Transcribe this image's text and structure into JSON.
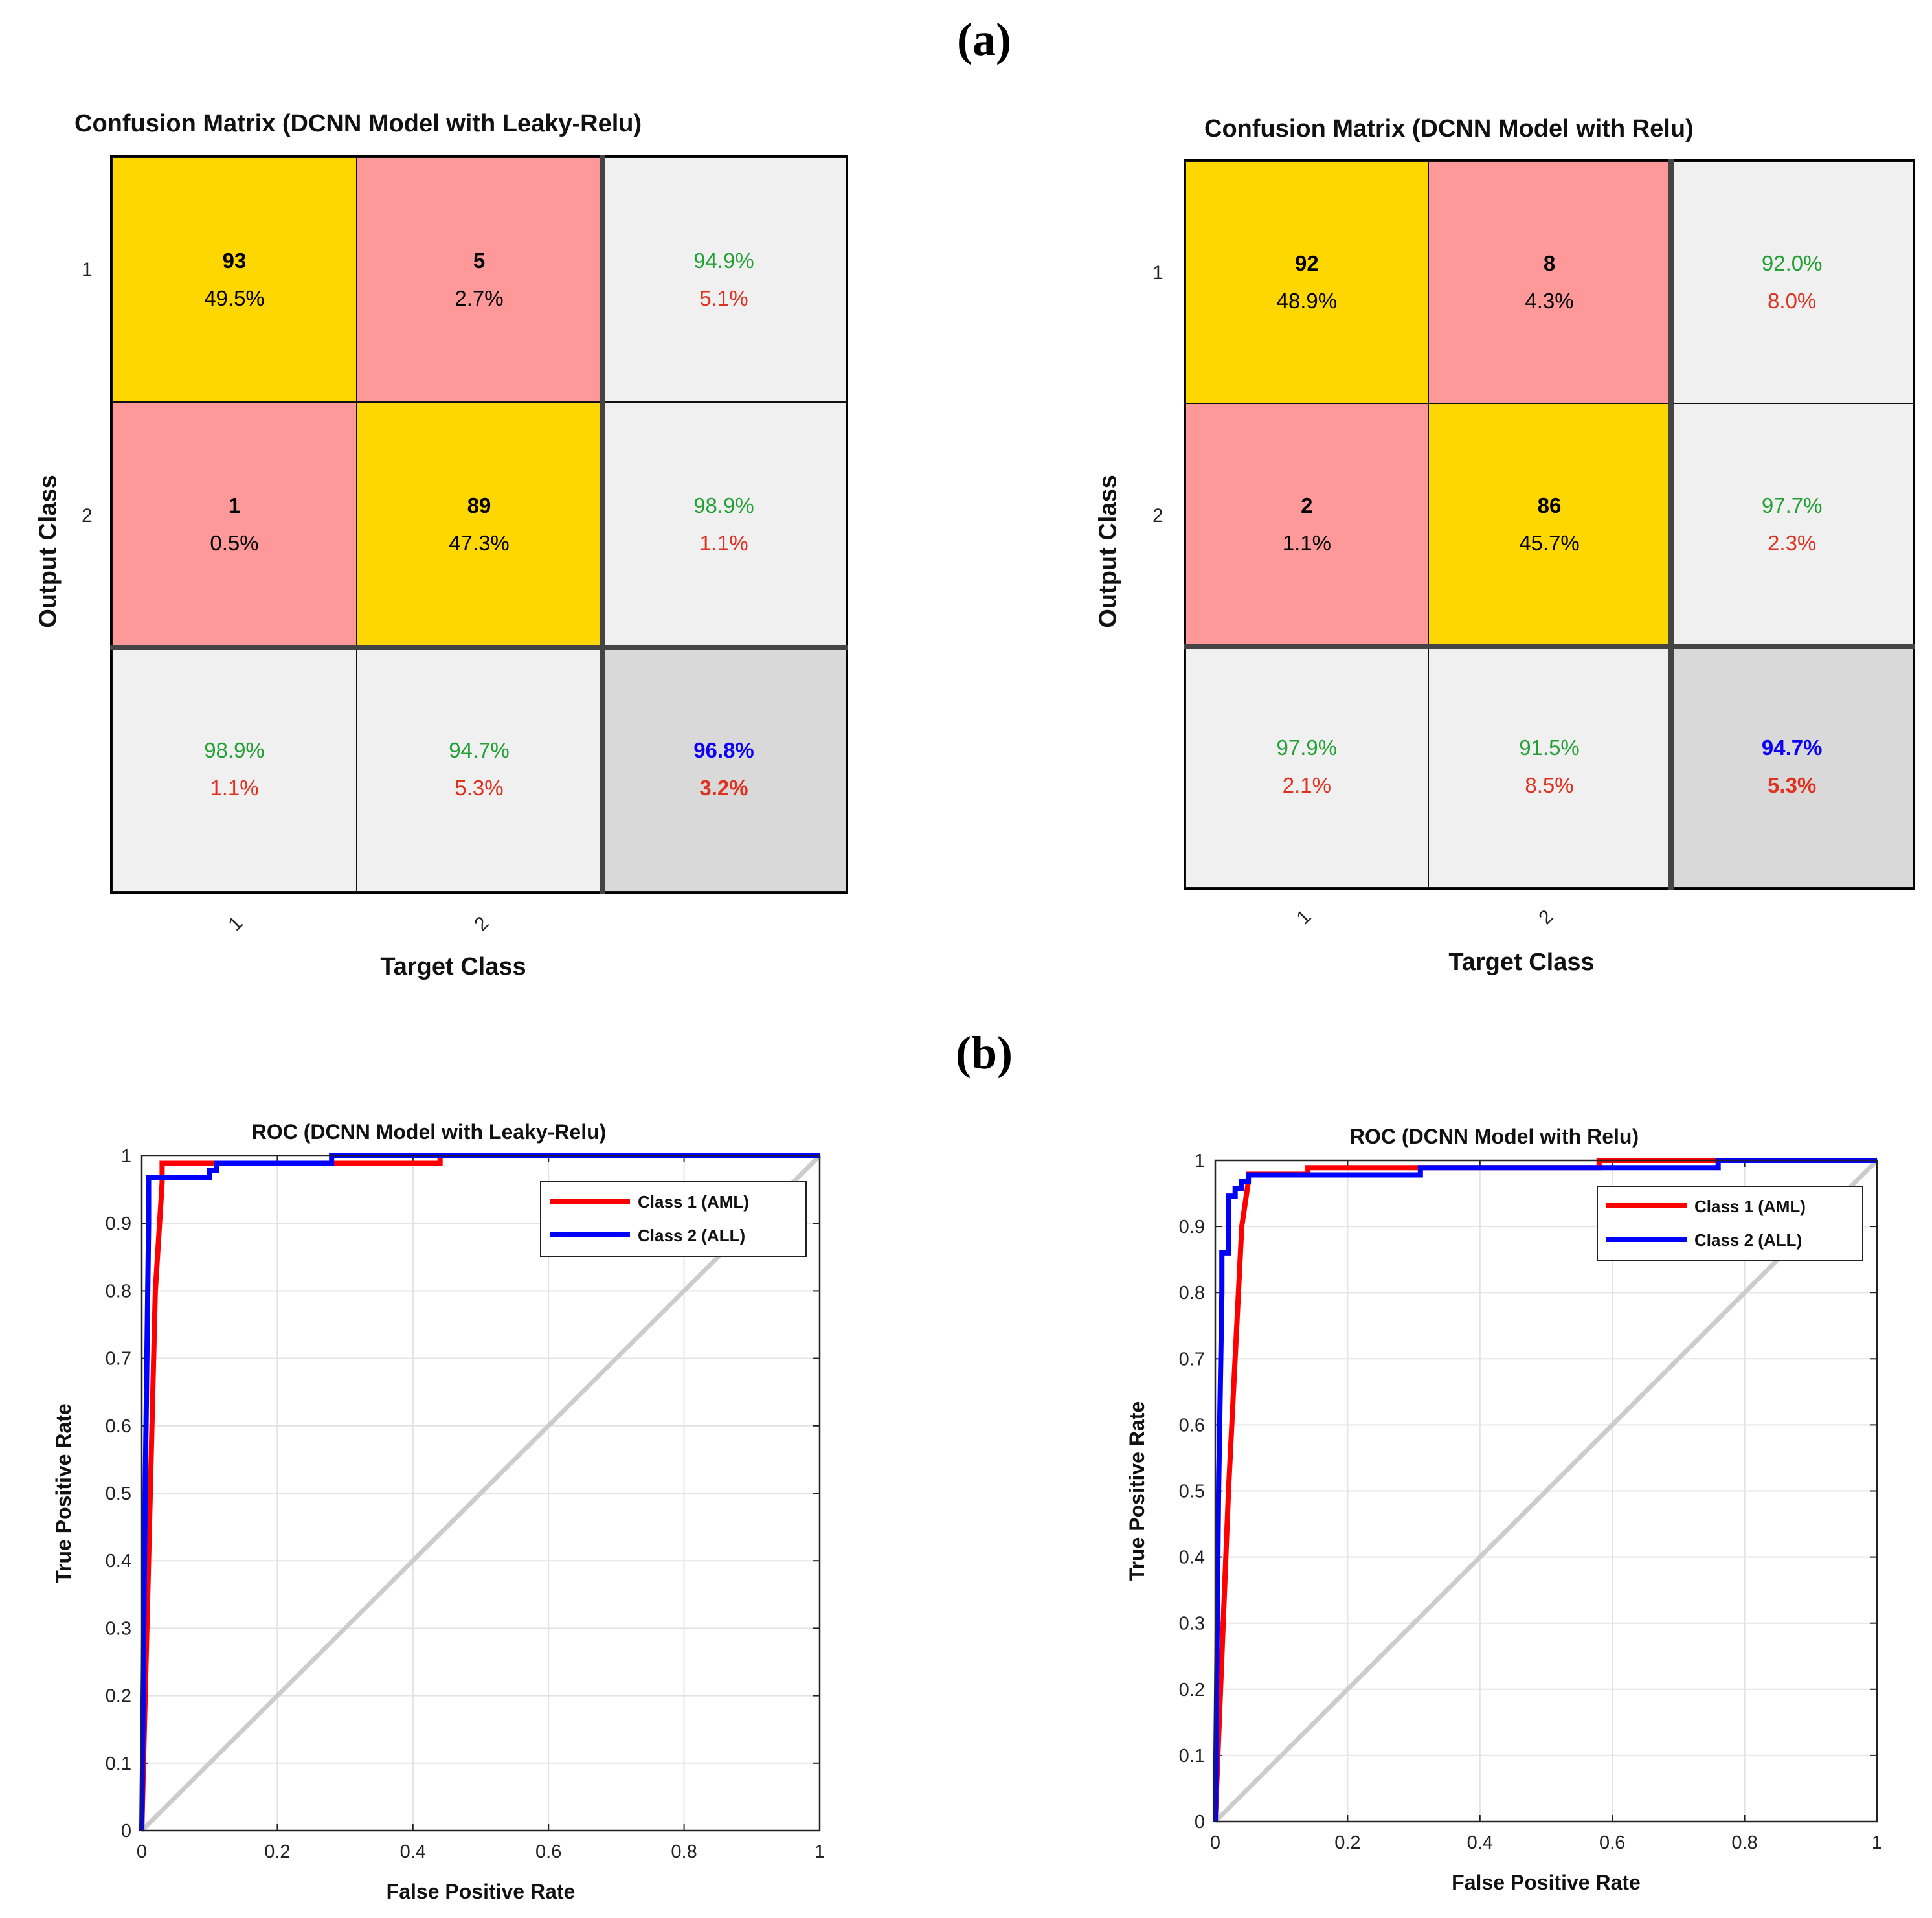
{
  "panels": {
    "a": "(a)",
    "b": "(b)"
  },
  "confusion_left": {
    "title": "Confusion Matrix (DCNN Model with Leaky-Relu)",
    "xlabel": "Target Class",
    "ylabel": "Output Class",
    "row_ticks": [
      "1",
      "2"
    ],
    "col_ticks": [
      "1",
      "2"
    ],
    "cells": [
      {
        "count": "93",
        "pct": "49.5%"
      },
      {
        "count": "5",
        "pct": "2.7%"
      },
      {
        "good": "94.9%",
        "bad": "5.1%"
      },
      {
        "count": "1",
        "pct": "0.5%"
      },
      {
        "count": "89",
        "pct": "47.3%"
      },
      {
        "good": "98.9%",
        "bad": "1.1%"
      },
      {
        "good": "98.9%",
        "bad": "1.1%"
      },
      {
        "good": "94.7%",
        "bad": "5.3%"
      },
      {
        "good": "96.8%",
        "bad": "3.2%"
      }
    ]
  },
  "confusion_right": {
    "title": "Confusion Matrix (DCNN Model with Relu)",
    "xlabel": "Target Class",
    "ylabel": "Output Class",
    "row_ticks": [
      "1",
      "2"
    ],
    "col_ticks": [
      "1",
      "2"
    ],
    "cells": [
      {
        "count": "92",
        "pct": "48.9%"
      },
      {
        "count": "8",
        "pct": "4.3%"
      },
      {
        "good": "92.0%",
        "bad": "8.0%"
      },
      {
        "count": "2",
        "pct": "1.1%"
      },
      {
        "count": "86",
        "pct": "45.7%"
      },
      {
        "good": "97.7%",
        "bad": "2.3%"
      },
      {
        "good": "97.9%",
        "bad": "2.1%"
      },
      {
        "good": "91.5%",
        "bad": "8.5%"
      },
      {
        "good": "94.7%",
        "bad": "5.3%"
      }
    ]
  },
  "chart_data": [
    {
      "type": "line",
      "title": "ROC (DCNN Model with Leaky-Relu)",
      "xlabel": "False Positive Rate",
      "ylabel": "True Positive Rate",
      "xlim": [
        0,
        1
      ],
      "ylim": [
        0,
        1
      ],
      "xticks": [
        "0",
        "0.2",
        "0.4",
        "0.6",
        "0.8",
        "1"
      ],
      "yticks": [
        "0",
        "0.1",
        "0.2",
        "0.3",
        "0.4",
        "0.5",
        "0.6",
        "0.7",
        "0.8",
        "0.9",
        "1"
      ],
      "grid": true,
      "legend_position": "top-right",
      "series": [
        {
          "name": "Class 1 (AML)",
          "color": "#ff0000",
          "x": [
            0,
            0.01,
            0.02,
            0.03,
            0.03,
            0.44,
            0.44,
            1
          ],
          "y": [
            0,
            0.4,
            0.8,
            0.96,
            0.989,
            0.989,
            1,
            1
          ]
        },
        {
          "name": "Class 2 (ALL)",
          "color": "#0000ff",
          "x": [
            0,
            0.005,
            0.01,
            0.01,
            0.1,
            0.1,
            0.11,
            0.11,
            0.28,
            0.28,
            1
          ],
          "y": [
            0,
            0.5,
            0.9,
            0.968,
            0.968,
            0.978,
            0.978,
            0.989,
            0.989,
            1,
            1
          ]
        },
        {
          "name": "",
          "color": "#cccccc",
          "x": [
            0,
            1
          ],
          "y": [
            0,
            1
          ]
        }
      ]
    },
    {
      "type": "line",
      "title": "ROC (DCNN Model with Relu)",
      "xlabel": "False Positive Rate",
      "ylabel": "True Positive Rate",
      "xlim": [
        0,
        1
      ],
      "ylim": [
        0,
        1
      ],
      "xticks": [
        "0",
        "0.2",
        "0.4",
        "0.6",
        "0.8",
        "1"
      ],
      "yticks": [
        "0",
        "0.1",
        "0.2",
        "0.3",
        "0.4",
        "0.5",
        "0.6",
        "0.7",
        "0.8",
        "0.9",
        "1"
      ],
      "grid": true,
      "legend_position": "top-right",
      "series": [
        {
          "name": "Class 1 (AML)",
          "color": "#ff0000",
          "x": [
            0,
            0.02,
            0.04,
            0.05,
            0.05,
            0.14,
            0.14,
            0.58,
            0.58,
            1
          ],
          "y": [
            0,
            0.5,
            0.9,
            0.968,
            0.979,
            0.979,
            0.989,
            0.989,
            1,
            1
          ]
        },
        {
          "name": "Class 2 (ALL)",
          "color": "#0000ff",
          "x": [
            0,
            0.005,
            0.01,
            0.01,
            0.02,
            0.02,
            0.03,
            0.03,
            0.04,
            0.04,
            0.05,
            0.05,
            0.31,
            0.31,
            0.76,
            0.76,
            1
          ],
          "y": [
            0,
            0.5,
            0.8,
            0.86,
            0.86,
            0.946,
            0.946,
            0.957,
            0.957,
            0.968,
            0.968,
            0.978,
            0.978,
            0.989,
            0.989,
            1,
            1
          ]
        },
        {
          "name": "",
          "color": "#cccccc",
          "x": [
            0,
            1
          ],
          "y": [
            0,
            1
          ]
        }
      ]
    }
  ]
}
